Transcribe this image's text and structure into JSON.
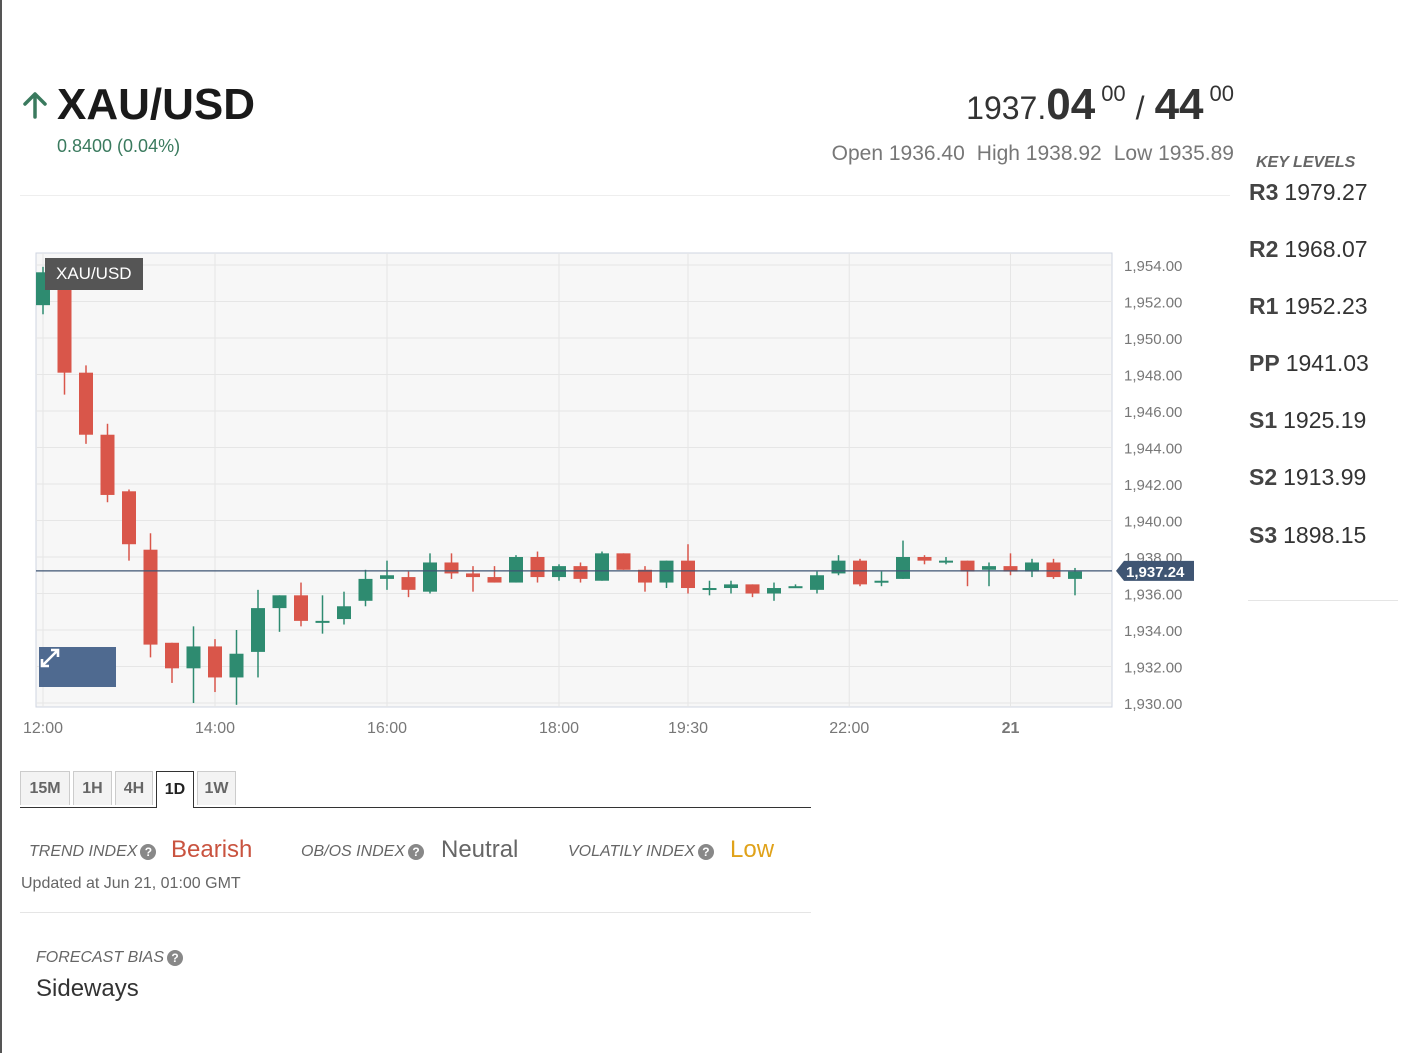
{
  "header": {
    "symbol": "XAU/USD",
    "change": "0.8400 (0.04%)",
    "price_base": "1937.",
    "bid_big": "04",
    "bid_sup": "00",
    "separator": "/",
    "ask_big": "44",
    "ask_sup": "00",
    "open": "Open 1936.40",
    "high": "High 1938.92",
    "low": "Low 1935.89"
  },
  "colors": {
    "up": "#2e8b70",
    "down": "#d9564a",
    "price_line": "#3f5573",
    "accent_green": "#3a7a5e",
    "bearish": "#c9533f",
    "neutral": "#666666",
    "low": "#e0a21a"
  },
  "timeframes": {
    "active": "1D",
    "items": [
      "15M",
      "1H",
      "4H",
      "1D",
      "1W"
    ]
  },
  "indexes": {
    "trend": {
      "label": "TREND INDEX",
      "value": "Bearish"
    },
    "obos": {
      "label": "OB/OS INDEX",
      "value": "Neutral"
    },
    "volatility": {
      "label": "VOLATILY INDEX",
      "value": "Low"
    },
    "updated": "Updated at Jun 21, 01:00 GMT"
  },
  "forecast": {
    "label": "FORECAST BIAS",
    "value": "Sideways"
  },
  "key_levels": {
    "title": "KEY LEVELS",
    "levels": [
      {
        "name": "R3",
        "value": "1979.27"
      },
      {
        "name": "R2",
        "value": "1968.07"
      },
      {
        "name": "R1",
        "value": "1952.23"
      },
      {
        "name": "PP",
        "value": "1941.03"
      },
      {
        "name": "S1",
        "value": "1925.19"
      },
      {
        "name": "S2",
        "value": "1913.99"
      },
      {
        "name": "S3",
        "value": "1898.15"
      }
    ]
  },
  "chart_data": {
    "type": "candlestick",
    "title": "XAU/USD",
    "ylim": [
      1930,
      1954
    ],
    "y_ticks": [
      "1,954.00",
      "1,952.00",
      "1,950.00",
      "1,948.00",
      "1,946.00",
      "1,944.00",
      "1,942.00",
      "1,940.00",
      "1,938.00",
      "1,936.00",
      "1,934.00",
      "1,932.00",
      "1,930.00"
    ],
    "x_ticks": [
      {
        "label": "12:00",
        "index": 0
      },
      {
        "label": "14:00",
        "index": 8
      },
      {
        "label": "16:00",
        "index": 16
      },
      {
        "label": "18:00",
        "index": 24
      },
      {
        "label": "19:30",
        "index": 30
      },
      {
        "label": "22:00",
        "index": 37.5
      },
      {
        "label": "21",
        "index": 45
      }
    ],
    "current_price": 1937.24,
    "current_label": "1,937.24",
    "grid": true,
    "candles": [
      {
        "o": 1951.8,
        "h": 1953.9,
        "l": 1951.3,
        "c": 1953.6
      },
      {
        "o": 1953.6,
        "h": 1954.3,
        "l": 1946.9,
        "c": 1948.1
      },
      {
        "o": 1948.1,
        "h": 1948.5,
        "l": 1944.2,
        "c": 1944.7
      },
      {
        "o": 1944.7,
        "h": 1945.3,
        "l": 1941.0,
        "c": 1941.4
      },
      {
        "o": 1941.6,
        "h": 1941.7,
        "l": 1937.8,
        "c": 1938.7
      },
      {
        "o": 1938.4,
        "h": 1939.3,
        "l": 1932.5,
        "c": 1933.2
      },
      {
        "o": 1933.3,
        "h": 1933.3,
        "l": 1931.1,
        "c": 1931.9
      },
      {
        "o": 1931.9,
        "h": 1934.2,
        "l": 1930.0,
        "c": 1933.1
      },
      {
        "o": 1933.1,
        "h": 1933.5,
        "l": 1930.6,
        "c": 1931.4
      },
      {
        "o": 1931.4,
        "h": 1934.0,
        "l": 1929.9,
        "c": 1932.7
      },
      {
        "o": 1932.8,
        "h": 1936.2,
        "l": 1931.4,
        "c": 1935.2
      },
      {
        "o": 1935.2,
        "h": 1935.9,
        "l": 1933.9,
        "c": 1935.9
      },
      {
        "o": 1935.9,
        "h": 1936.6,
        "l": 1934.2,
        "c": 1934.5
      },
      {
        "o": 1934.5,
        "h": 1935.9,
        "l": 1933.8,
        "c": 1934.5
      },
      {
        "o": 1934.6,
        "h": 1936.1,
        "l": 1934.3,
        "c": 1935.3
      },
      {
        "o": 1935.6,
        "h": 1937.3,
        "l": 1935.3,
        "c": 1936.8
      },
      {
        "o": 1936.8,
        "h": 1937.8,
        "l": 1936.2,
        "c": 1937.0
      },
      {
        "o": 1936.9,
        "h": 1937.2,
        "l": 1935.8,
        "c": 1936.2
      },
      {
        "o": 1936.1,
        "h": 1938.2,
        "l": 1936.0,
        "c": 1937.7
      },
      {
        "o": 1937.7,
        "h": 1938.2,
        "l": 1936.8,
        "c": 1937.1
      },
      {
        "o": 1937.1,
        "h": 1937.5,
        "l": 1936.1,
        "c": 1936.9
      },
      {
        "o": 1936.9,
        "h": 1937.5,
        "l": 1936.6,
        "c": 1936.6
      },
      {
        "o": 1936.6,
        "h": 1938.1,
        "l": 1936.6,
        "c": 1938.0
      },
      {
        "o": 1938.0,
        "h": 1938.3,
        "l": 1936.6,
        "c": 1936.9
      },
      {
        "o": 1936.9,
        "h": 1937.6,
        "l": 1936.7,
        "c": 1937.5
      },
      {
        "o": 1937.5,
        "h": 1937.7,
        "l": 1936.6,
        "c": 1936.8
      },
      {
        "o": 1936.7,
        "h": 1938.3,
        "l": 1936.7,
        "c": 1938.2
      },
      {
        "o": 1938.2,
        "h": 1938.2,
        "l": 1937.3,
        "c": 1937.3
      },
      {
        "o": 1937.3,
        "h": 1937.5,
        "l": 1936.1,
        "c": 1936.6
      },
      {
        "o": 1936.6,
        "h": 1937.8,
        "l": 1936.3,
        "c": 1937.8
      },
      {
        "o": 1937.8,
        "h": 1938.7,
        "l": 1936.0,
        "c": 1936.3
      },
      {
        "o": 1936.3,
        "h": 1936.7,
        "l": 1935.9,
        "c": 1936.3
      },
      {
        "o": 1936.3,
        "h": 1936.7,
        "l": 1936.0,
        "c": 1936.5
      },
      {
        "o": 1936.5,
        "h": 1936.5,
        "l": 1935.8,
        "c": 1936.0
      },
      {
        "o": 1936.0,
        "h": 1936.6,
        "l": 1935.6,
        "c": 1936.3
      },
      {
        "o": 1936.4,
        "h": 1936.5,
        "l": 1936.3,
        "c": 1936.4
      },
      {
        "o": 1936.2,
        "h": 1937.2,
        "l": 1936.0,
        "c": 1937.0
      },
      {
        "o": 1937.1,
        "h": 1938.1,
        "l": 1937.0,
        "c": 1937.8
      },
      {
        "o": 1937.8,
        "h": 1937.9,
        "l": 1936.4,
        "c": 1936.5
      },
      {
        "o": 1936.6,
        "h": 1937.2,
        "l": 1936.4,
        "c": 1936.7
      },
      {
        "o": 1936.8,
        "h": 1938.9,
        "l": 1936.8,
        "c": 1938.0
      },
      {
        "o": 1938.0,
        "h": 1938.1,
        "l": 1937.6,
        "c": 1937.8
      },
      {
        "o": 1937.8,
        "h": 1938.0,
        "l": 1937.6,
        "c": 1937.8
      },
      {
        "o": 1937.8,
        "h": 1937.8,
        "l": 1936.4,
        "c": 1937.2
      },
      {
        "o": 1937.3,
        "h": 1937.7,
        "l": 1936.4,
        "c": 1937.5
      },
      {
        "o": 1937.5,
        "h": 1938.2,
        "l": 1937.0,
        "c": 1937.2
      },
      {
        "o": 1937.2,
        "h": 1937.9,
        "l": 1936.9,
        "c": 1937.7
      },
      {
        "o": 1937.7,
        "h": 1937.9,
        "l": 1936.8,
        "c": 1936.9
      },
      {
        "o": 1936.8,
        "h": 1937.4,
        "l": 1935.9,
        "c": 1937.2
      }
    ]
  }
}
